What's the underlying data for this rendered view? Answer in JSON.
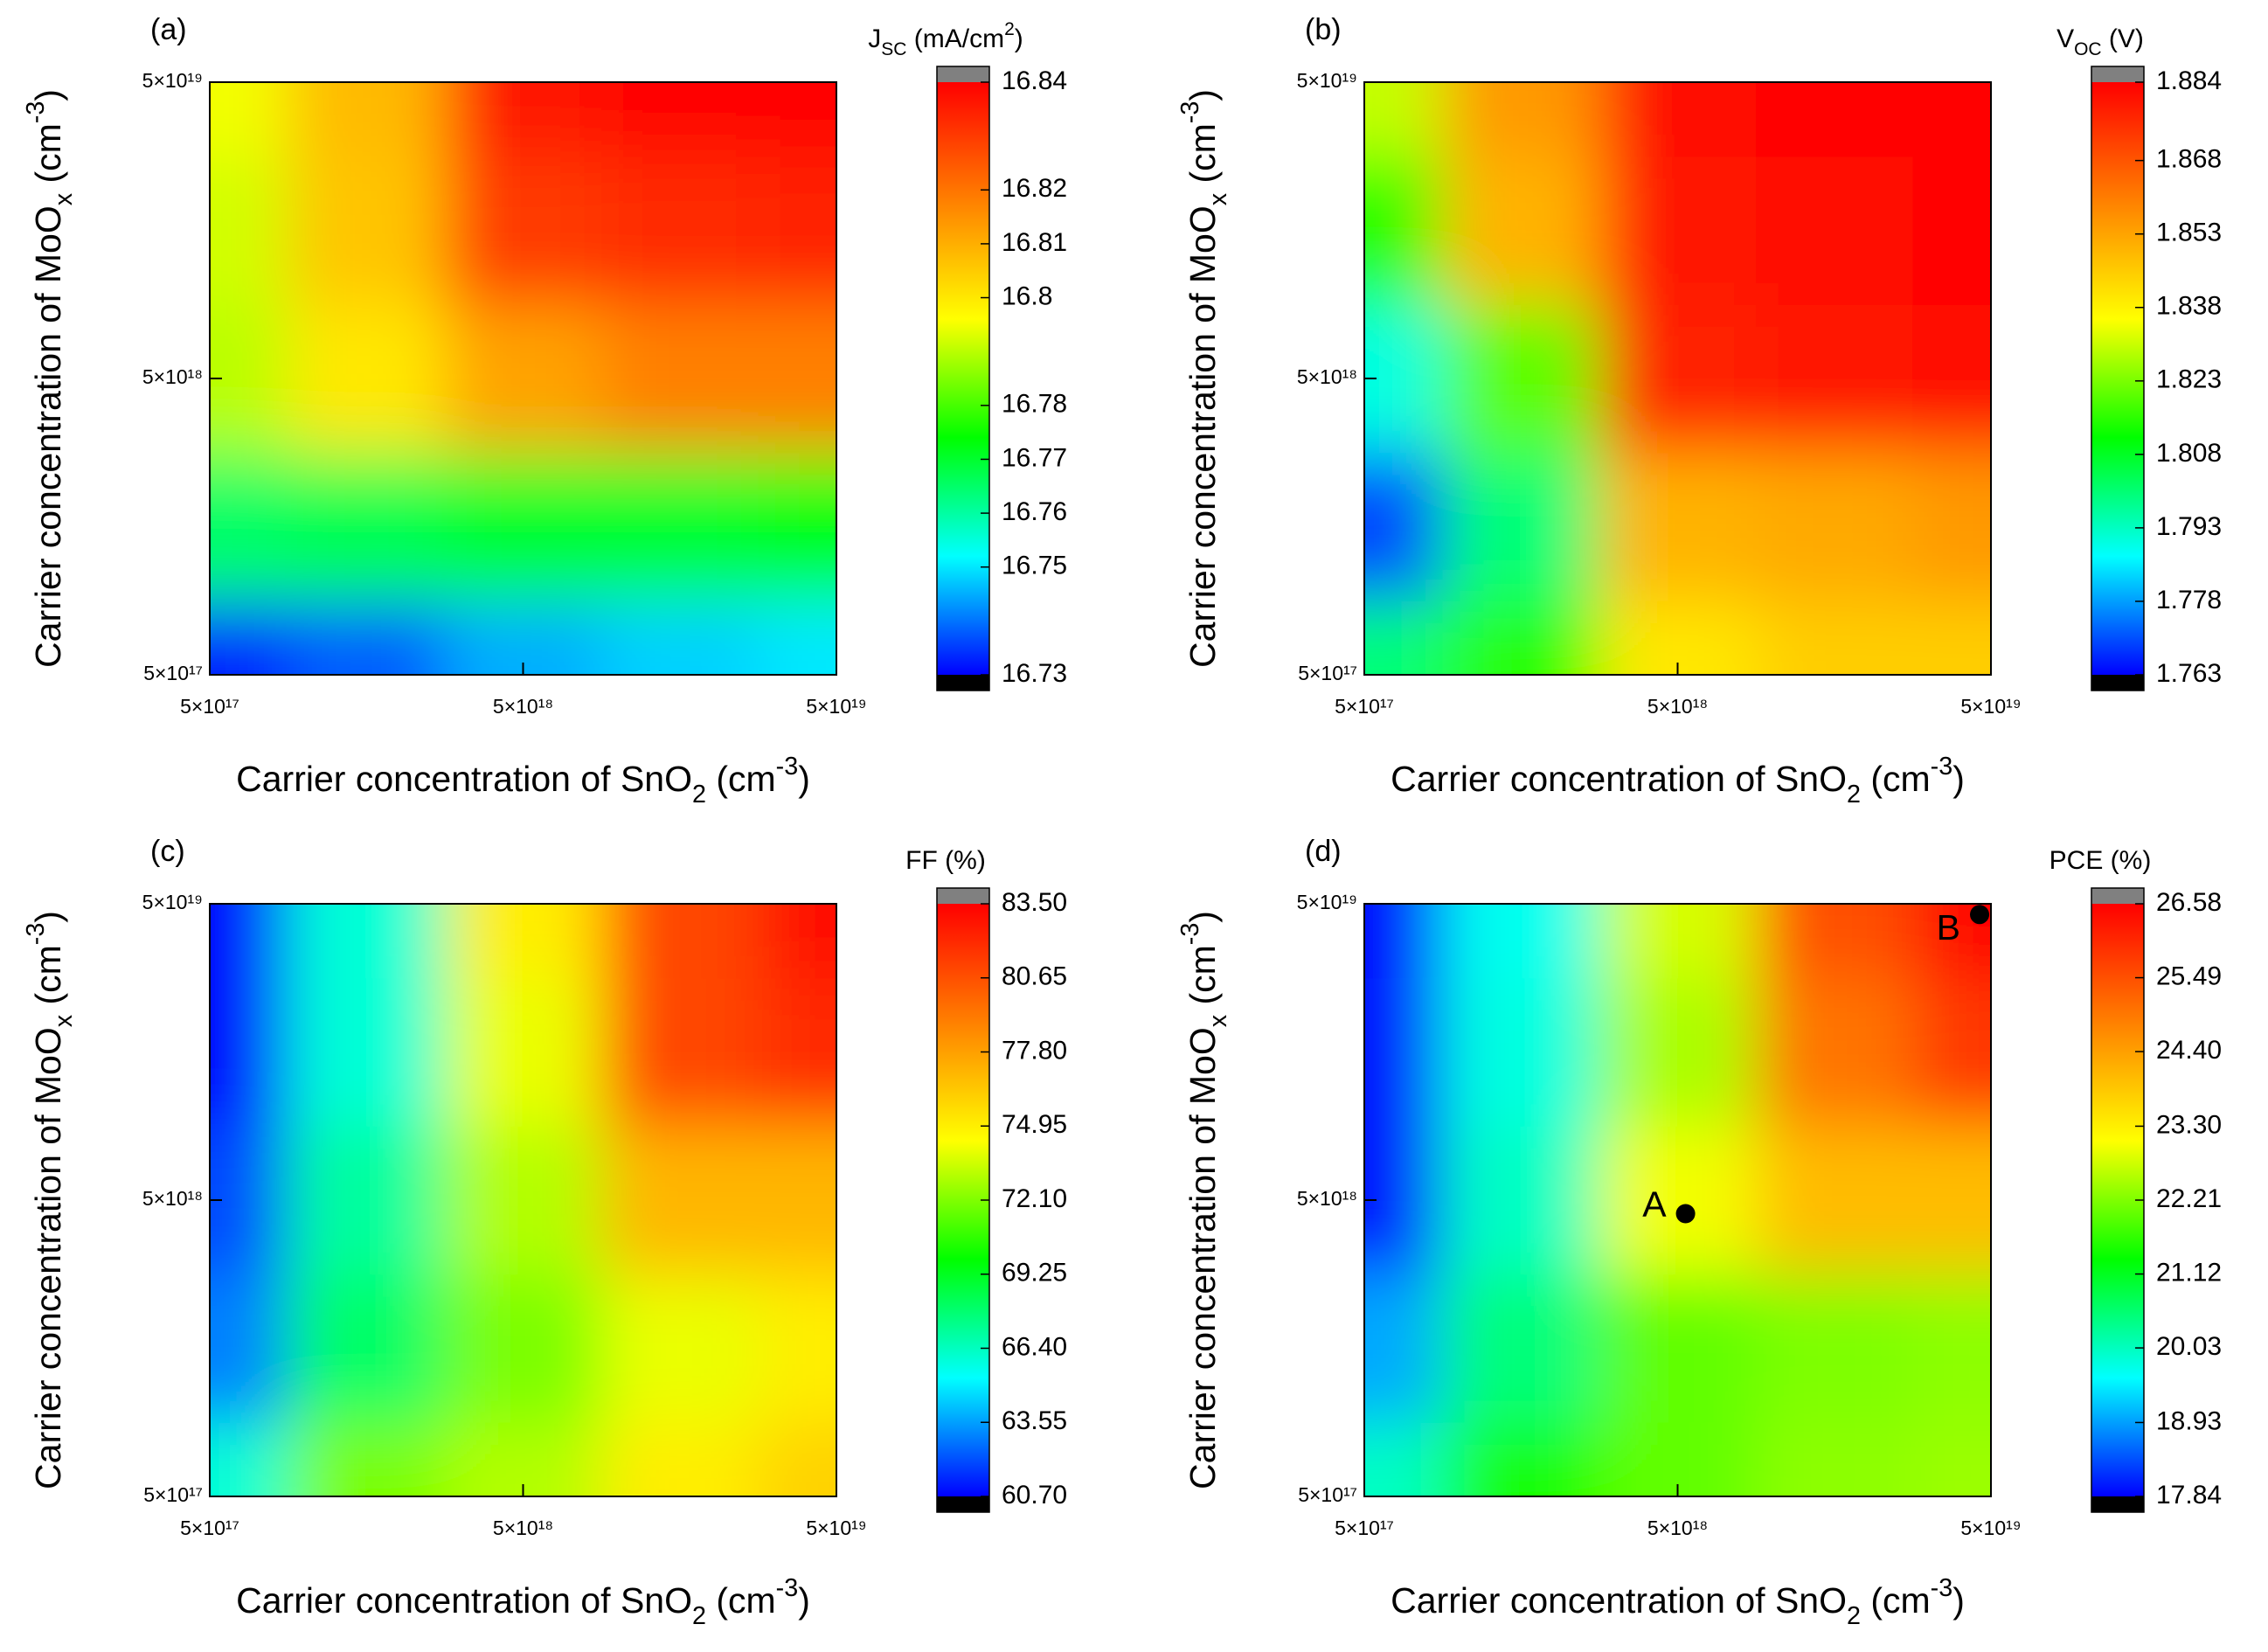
{
  "chart_data": [
    {
      "type": "contour",
      "panel_label": "(a)",
      "x": [
        5e+17,
        1.58e+18,
        5e+18,
        1.58e+19,
        5e+19
      ],
      "y": [
        5e+17,
        1.58e+18,
        5e+18,
        1.58e+19,
        5e+19
      ],
      "z": [
        [
          16.733,
          16.738,
          16.745,
          16.748,
          16.75
        ],
        [
          16.765,
          16.767,
          16.77,
          16.77,
          16.772
        ],
        [
          16.79,
          16.8,
          16.812,
          16.818,
          16.818
        ],
        [
          16.792,
          16.806,
          16.83,
          16.833,
          16.834
        ],
        [
          16.795,
          16.808,
          16.836,
          16.84,
          16.84
        ]
      ],
      "xlim": [
        5e+17,
        5e+19
      ],
      "ylim": [
        5e+17,
        5e+19
      ],
      "log_x": true,
      "log_y": true,
      "xticks": [
        {
          "value": 5e+17,
          "label": "5×10¹⁷"
        },
        {
          "value": 5e+18,
          "label": "5×10¹⁸"
        },
        {
          "value": 5e+19,
          "label": "5×10¹⁹"
        }
      ],
      "yticks": [
        {
          "value": 5e+17,
          "label": "5×10¹⁷"
        },
        {
          "value": 5e+18,
          "label": "5×10¹⁸"
        },
        {
          "value": 5e+19,
          "label": "5×10¹⁹"
        }
      ],
      "xlabel": [
        {
          "text": "Carrier concentration of SnO"
        },
        {
          "text": "2",
          "sub": true
        },
        {
          "text": " (cm"
        },
        {
          "text": "-3",
          "sup": true
        },
        {
          "text": ")"
        }
      ],
      "ylabel": [
        {
          "text": "Carrier concentration of MoO"
        },
        {
          "text": "x",
          "sub": true
        },
        {
          "text": " (cm"
        },
        {
          "text": "-3",
          "sup": true
        },
        {
          "text": ")"
        }
      ],
      "colorbar_label": [
        {
          "text": "J"
        },
        {
          "text": "SC",
          "sub": true
        },
        {
          "text": " (mA/cm"
        },
        {
          "text": "2",
          "sup": true
        },
        {
          "text": ")"
        }
      ],
      "zlim": [
        16.73,
        16.84
      ],
      "zticks": [
        16.73,
        16.75,
        16.76,
        16.77,
        16.78,
        16.8,
        16.81,
        16.82,
        16.84
      ],
      "colormap": [
        "#0000ff",
        "#00ffff",
        "#00ff00",
        "#ffff00",
        "#ff8000",
        "#ff0000"
      ],
      "under_color": "#000000",
      "over_color": "#808080"
    },
    {
      "type": "contour",
      "panel_label": "(b)",
      "x": [
        5e+17,
        1.58e+18,
        5e+18,
        1.58e+19,
        5e+19
      ],
      "y": [
        5e+17,
        1.58e+18,
        5e+18,
        1.58e+19,
        5e+19
      ],
      "z": [
        [
          1.8,
          1.815,
          1.84,
          1.845,
          1.845
        ],
        [
          1.77,
          1.8,
          1.85,
          1.852,
          1.855
        ],
        [
          1.79,
          1.82,
          1.878,
          1.88,
          1.882
        ],
        [
          1.815,
          1.85,
          1.88,
          1.882,
          1.884
        ],
        [
          1.83,
          1.855,
          1.882,
          1.884,
          1.884
        ]
      ],
      "xlim": [
        5e+17,
        5e+19
      ],
      "ylim": [
        5e+17,
        5e+19
      ],
      "log_x": true,
      "log_y": true,
      "xticks": [
        {
          "value": 5e+17,
          "label": "5×10¹⁷"
        },
        {
          "value": 5e+18,
          "label": "5×10¹⁸"
        },
        {
          "value": 5e+19,
          "label": "5×10¹⁹"
        }
      ],
      "yticks": [
        {
          "value": 5e+17,
          "label": "5×10¹⁷"
        },
        {
          "value": 5e+18,
          "label": "5×10¹⁸"
        },
        {
          "value": 5e+19,
          "label": "5×10¹⁹"
        }
      ],
      "xlabel": [
        {
          "text": "Carrier concentration of SnO"
        },
        {
          "text": "2",
          "sub": true
        },
        {
          "text": " (cm"
        },
        {
          "text": "-3",
          "sup": true
        },
        {
          "text": ")"
        }
      ],
      "ylabel": [
        {
          "text": "Carrier concentration of MoO"
        },
        {
          "text": "x",
          "sub": true
        },
        {
          "text": " (cm"
        },
        {
          "text": "-3",
          "sup": true
        },
        {
          "text": ")"
        }
      ],
      "colorbar_label": [
        {
          "text": "V"
        },
        {
          "text": "OC",
          "sub": true
        },
        {
          "text": " (V)"
        }
      ],
      "zlim": [
        1.763,
        1.884
      ],
      "zticks": [
        1.763,
        1.778,
        1.793,
        1.808,
        1.823,
        1.838,
        1.853,
        1.868,
        1.884
      ],
      "colormap": [
        "#0000ff",
        "#00ffff",
        "#00ff00",
        "#ffff00",
        "#ff8000",
        "#ff0000"
      ],
      "under_color": "#000000",
      "over_color": "#808080"
    },
    {
      "type": "contour",
      "panel_label": "(c)",
      "x": [
        5e+17,
        1.58e+18,
        5e+18,
        1.58e+19,
        5e+19
      ],
      "y": [
        5e+17,
        1.58e+18,
        5e+18,
        1.58e+19,
        5e+19
      ],
      "z": [
        [
          66,
          72,
          73,
          75,
          76
        ],
        [
          63,
          68,
          72,
          74,
          75
        ],
        [
          62,
          67,
          73,
          77,
          77
        ],
        [
          61,
          66,
          74,
          81,
          82
        ],
        [
          61,
          66,
          75,
          81,
          83
        ]
      ],
      "xlim": [
        5e+17,
        5e+19
      ],
      "ylim": [
        5e+17,
        5e+19
      ],
      "log_x": true,
      "log_y": true,
      "xticks": [
        {
          "value": 5e+17,
          "label": "5×10¹⁷"
        },
        {
          "value": 5e+18,
          "label": "5×10¹⁸"
        },
        {
          "value": 5e+19,
          "label": "5×10¹⁹"
        }
      ],
      "yticks": [
        {
          "value": 5e+17,
          "label": "5×10¹⁷"
        },
        {
          "value": 5e+18,
          "label": "5×10¹⁸"
        },
        {
          "value": 5e+19,
          "label": "5×10¹⁹"
        }
      ],
      "xlabel": [
        {
          "text": "Carrier concentration of SnO"
        },
        {
          "text": "2",
          "sub": true
        },
        {
          "text": " (cm"
        },
        {
          "text": "-3",
          "sup": true
        },
        {
          "text": ")"
        }
      ],
      "ylabel": [
        {
          "text": "Carrier concentration of MoO"
        },
        {
          "text": "x",
          "sub": true
        },
        {
          "text": " (cm"
        },
        {
          "text": "-3",
          "sup": true
        },
        {
          "text": ")"
        }
      ],
      "colorbar_label": [
        {
          "text": "FF (%)"
        }
      ],
      "zlim": [
        60.7,
        83.5
      ],
      "zticks": [
        {
          "value": 60.7,
          "label": "60.70"
        },
        63.55,
        {
          "value": 66.4,
          "label": "66.40"
        },
        69.25,
        {
          "value": 72.1,
          "label": "72.10"
        },
        74.95,
        {
          "value": 77.8,
          "label": "77.80"
        },
        80.65,
        {
          "value": 83.5,
          "label": "83.50"
        }
      ],
      "colormap": [
        "#0000ff",
        "#00ffff",
        "#00ff00",
        "#ffff00",
        "#ff8000",
        "#ff0000"
      ],
      "under_color": "#000000",
      "over_color": "#808080"
    },
    {
      "type": "contour",
      "panel_label": "(d)",
      "x": [
        5e+17,
        1.58e+18,
        5e+18,
        1.58e+19,
        5e+19
      ],
      "y": [
        5e+17,
        1.58e+18,
        5e+18,
        1.58e+19,
        5e+19
      ],
      "z": [
        [
          20,
          21.5,
          22,
          22.3,
          22.4
        ],
        [
          19,
          20.5,
          22,
          22.2,
          22.3
        ],
        [
          18,
          20,
          23,
          24,
          24
        ],
        [
          18,
          19.8,
          22.5,
          25,
          25.8
        ],
        [
          17.9,
          19.7,
          22.8,
          25.5,
          26.5
        ]
      ],
      "xlim": [
        5e+17,
        5e+19
      ],
      "ylim": [
        5e+17,
        5e+19
      ],
      "log_x": true,
      "log_y": true,
      "xticks": [
        {
          "value": 5e+17,
          "label": "5×10¹⁷"
        },
        {
          "value": 5e+18,
          "label": "5×10¹⁸"
        },
        {
          "value": 5e+19,
          "label": "5×10¹⁹"
        }
      ],
      "yticks": [
        {
          "value": 5e+17,
          "label": "5×10¹⁷"
        },
        {
          "value": 5e+18,
          "label": "5×10¹⁸"
        },
        {
          "value": 5e+19,
          "label": "5×10¹⁹"
        }
      ],
      "xlabel": [
        {
          "text": "Carrier concentration of SnO"
        },
        {
          "text": "2",
          "sub": true
        },
        {
          "text": " (cm"
        },
        {
          "text": "-3",
          "sup": true
        },
        {
          "text": ")"
        }
      ],
      "ylabel": [
        {
          "text": "Carrier concentration of MoO"
        },
        {
          "text": "x",
          "sub": true
        },
        {
          "text": " (cm"
        },
        {
          "text": "-3",
          "sup": true
        },
        {
          "text": ")"
        }
      ],
      "colorbar_label": [
        {
          "text": "PCE (%)"
        }
      ],
      "zlim": [
        17.84,
        26.58
      ],
      "zticks": [
        17.84,
        18.93,
        20.03,
        21.12,
        22.21,
        {
          "value": 23.3,
          "label": "23.30"
        },
        {
          "value": 24.4,
          "label": "24.40"
        },
        25.49,
        26.58
      ],
      "colormap": [
        "#0000ff",
        "#00ffff",
        "#00ff00",
        "#ffff00",
        "#ff8000",
        "#ff0000"
      ],
      "under_color": "#000000",
      "over_color": "#808080",
      "annotations": [
        {
          "label": "A",
          "x": 5.3e+18,
          "y": 4.5e+18
        },
        {
          "label": "B",
          "x": 4.6e+19,
          "y": 4.6e+19
        }
      ]
    }
  ]
}
